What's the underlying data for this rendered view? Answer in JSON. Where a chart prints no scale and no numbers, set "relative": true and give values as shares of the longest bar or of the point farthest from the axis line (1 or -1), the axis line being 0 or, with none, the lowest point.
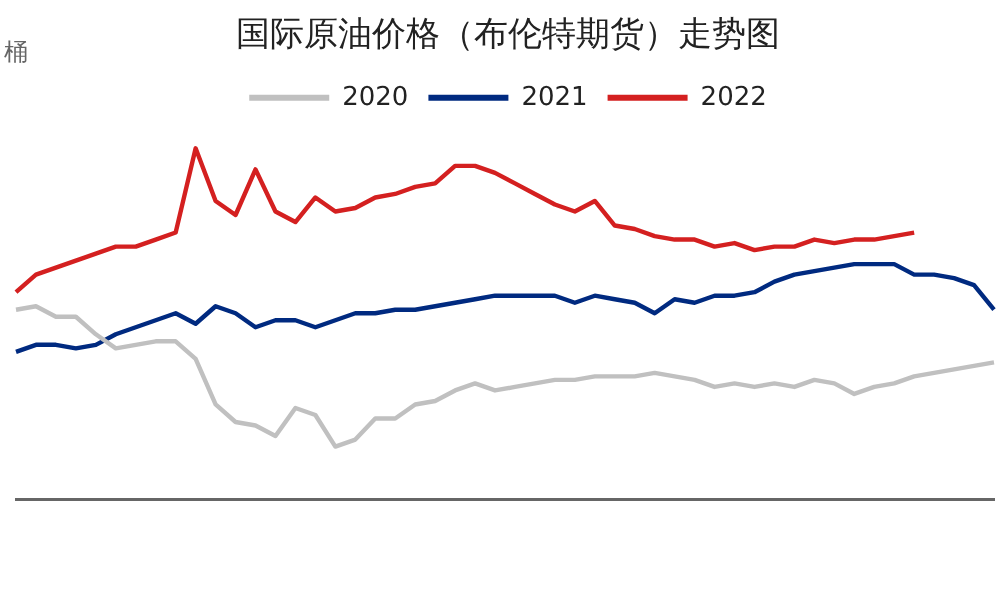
{
  "chart_data": {
    "type": "line",
    "title": "国际原油价格（布伦特期货）走势图",
    "ylabel": "桶",
    "relative": true,
    "legend": "top",
    "marker": "none",
    "line_style": "solid",
    "grid": false,
    "categories": [
      null,
      null,
      null,
      null,
      null,
      null,
      null,
      null,
      null,
      null,
      null,
      null,
      null,
      null,
      null,
      null,
      null,
      null,
      null,
      null,
      null,
      null,
      null,
      null,
      null,
      null,
      null,
      null,
      null,
      null,
      null,
      null,
      null,
      null,
      null,
      null,
      null,
      null,
      null,
      null,
      null,
      null,
      null,
      null,
      null,
      null,
      null,
      null,
      null,
      null
    ],
    "series": [
      {
        "name": "2020",
        "color": "#c0c0c0",
        "values": [
          0.54,
          0.55,
          0.52,
          0.52,
          0.47,
          0.43,
          0.44,
          0.45,
          0.45,
          0.4,
          0.27,
          0.22,
          0.21,
          0.18,
          0.26,
          0.24,
          0.15,
          0.17,
          0.23,
          0.23,
          0.27,
          0.28,
          0.31,
          0.33,
          0.31,
          0.32,
          0.33,
          0.34,
          0.34,
          0.35,
          0.35,
          0.35,
          0.36,
          0.35,
          0.34,
          0.32,
          0.33,
          0.32,
          0.33,
          0.32,
          0.34,
          0.33,
          0.3,
          0.32,
          0.33,
          0.35,
          0.36,
          0.37,
          0.38,
          0.39
        ]
      },
      {
        "name": "2021",
        "color": "#002a80",
        "values": [
          0.42,
          0.44,
          0.44,
          0.43,
          0.44,
          0.47,
          0.49,
          0.51,
          0.53,
          0.5,
          0.55,
          0.53,
          0.49,
          0.51,
          0.51,
          0.49,
          0.51,
          0.53,
          0.53,
          0.54,
          0.54,
          0.55,
          0.56,
          0.57,
          0.58,
          0.58,
          0.58,
          0.58,
          0.56,
          0.58,
          0.57,
          0.56,
          0.53,
          0.57,
          0.56,
          0.58,
          0.58,
          0.59,
          0.62,
          0.64,
          0.65,
          0.66,
          0.67,
          0.67,
          0.67,
          0.64,
          0.64,
          0.63,
          0.61,
          0.54
        ]
      },
      {
        "name": "2022",
        "color": "#d42020",
        "values": [
          0.59,
          0.64,
          0.66,
          0.68,
          0.7,
          0.72,
          0.72,
          0.74,
          0.76,
          1.0,
          0.85,
          0.81,
          0.94,
          0.82,
          0.79,
          0.86,
          0.82,
          0.83,
          0.86,
          0.87,
          0.89,
          0.9,
          0.95,
          0.95,
          0.93,
          0.9,
          0.87,
          0.84,
          0.82,
          0.85,
          0.78,
          0.77,
          0.75,
          0.74,
          0.74,
          0.72,
          0.73,
          0.71,
          0.72,
          0.72,
          0.74,
          0.73,
          0.74,
          0.74,
          0.75,
          0.76,
          null,
          null,
          null,
          null
        ]
      }
    ]
  }
}
